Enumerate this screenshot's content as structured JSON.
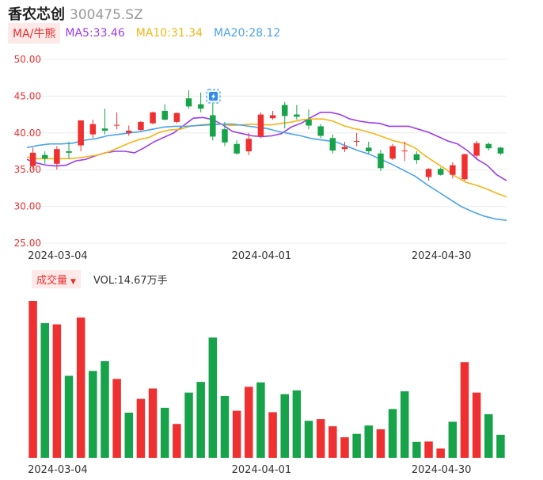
{
  "header": {
    "name": "香农芯创",
    "code": "300475.SZ"
  },
  "ma_bar": {
    "button_label": "MA/牛熊",
    "ma5": "MA5:33.46",
    "ma10": "MA10:31.34",
    "ma20": "MA20:28.12"
  },
  "volume_bar": {
    "button_label": "成交量",
    "label": "VOL:14.67万手"
  },
  "colors": {
    "up": "#ef3030",
    "down": "#16a34a",
    "ma5": "#9b3dea",
    "ma10": "#f4b516",
    "ma20": "#4aa3ec",
    "axis_text": "#e93030"
  },
  "icon": "lightning-bolt-icon",
  "chart_data": [
    {
      "type": "candlestick",
      "y_ticks": [
        "50.00",
        "45.00",
        "40.00",
        "35.00",
        "30.00",
        "25.00"
      ],
      "ylim": [
        25,
        50
      ],
      "x_tick_labels": [
        {
          "label": "2024-03-04",
          "index": 2
        },
        {
          "label": "2024-04-01",
          "index": 19
        },
        {
          "label": "2024-04-30",
          "index": 34
        }
      ],
      "candles": [
        {
          "o": 35.5,
          "c": 37.3,
          "h": 38.0,
          "l": 35.0
        },
        {
          "o": 37.0,
          "c": 36.5,
          "h": 37.5,
          "l": 35.8
        },
        {
          "o": 35.8,
          "c": 37.8,
          "h": 38.2,
          "l": 35.0
        },
        {
          "o": 37.5,
          "c": 37.3,
          "h": 38.8,
          "l": 36.5
        },
        {
          "o": 38.3,
          "c": 41.7,
          "h": 41.7,
          "l": 37.5
        },
        {
          "o": 39.8,
          "c": 41.2,
          "h": 41.8,
          "l": 39.3
        },
        {
          "o": 40.6,
          "c": 40.3,
          "h": 43.3,
          "l": 39.8
        },
        {
          "o": 41.1,
          "c": 41.1,
          "h": 42.8,
          "l": 40.5
        },
        {
          "o": 40.0,
          "c": 40.3,
          "h": 41.0,
          "l": 39.6
        },
        {
          "o": 40.4,
          "c": 41.5,
          "h": 41.6,
          "l": 40.3
        },
        {
          "o": 41.3,
          "c": 42.8,
          "h": 42.9,
          "l": 41.2
        },
        {
          "o": 43.0,
          "c": 41.8,
          "h": 43.9,
          "l": 41.7
        },
        {
          "o": 41.5,
          "c": 42.7,
          "h": 42.8,
          "l": 41.3
        },
        {
          "o": 44.7,
          "c": 43.6,
          "h": 45.8,
          "l": 43.3
        },
        {
          "o": 43.9,
          "c": 43.3,
          "h": 45.5,
          "l": 42.8
        },
        {
          "o": 42.4,
          "c": 39.5,
          "h": 44.0,
          "l": 39.0
        },
        {
          "o": 40.5,
          "c": 38.7,
          "h": 41.5,
          "l": 38.2
        },
        {
          "o": 38.5,
          "c": 37.2,
          "h": 39.0,
          "l": 37.0
        },
        {
          "o": 37.5,
          "c": 39.2,
          "h": 40.0,
          "l": 37.0
        },
        {
          "o": 39.5,
          "c": 42.5,
          "h": 42.8,
          "l": 39.3
        },
        {
          "o": 42.0,
          "c": 42.4,
          "h": 43.0,
          "l": 41.8
        },
        {
          "o": 43.8,
          "c": 42.3,
          "h": 44.2,
          "l": 40.6
        },
        {
          "o": 42.5,
          "c": 42.2,
          "h": 43.8,
          "l": 41.8
        },
        {
          "o": 41.8,
          "c": 41.0,
          "h": 43.2,
          "l": 40.5
        },
        {
          "o": 40.9,
          "c": 39.6,
          "h": 41.2,
          "l": 39.3
        },
        {
          "o": 39.3,
          "c": 37.6,
          "h": 39.8,
          "l": 37.2
        },
        {
          "o": 37.8,
          "c": 38.1,
          "h": 38.8,
          "l": 37.4
        },
        {
          "o": 38.8,
          "c": 38.9,
          "h": 40.0,
          "l": 38.2
        },
        {
          "o": 38.0,
          "c": 37.5,
          "h": 38.8,
          "l": 37.2
        },
        {
          "o": 37.2,
          "c": 35.2,
          "h": 37.7,
          "l": 34.8
        },
        {
          "o": 36.5,
          "c": 38.2,
          "h": 38.5,
          "l": 36.3
        },
        {
          "o": 37.5,
          "c": 37.6,
          "h": 38.8,
          "l": 36.2
        },
        {
          "o": 37.1,
          "c": 36.3,
          "h": 37.5,
          "l": 35.8
        },
        {
          "o": 34.0,
          "c": 35.1,
          "h": 35.2,
          "l": 33.5
        },
        {
          "o": 35.1,
          "c": 34.3,
          "h": 35.3,
          "l": 34.2
        },
        {
          "o": 34.3,
          "c": 35.6,
          "h": 36.0,
          "l": 33.8
        },
        {
          "o": 33.7,
          "c": 37.1,
          "h": 37.2,
          "l": 33.5
        },
        {
          "o": 36.9,
          "c": 38.6,
          "h": 38.9,
          "l": 36.5
        },
        {
          "o": 38.5,
          "c": 37.9,
          "h": 38.7,
          "l": 37.6
        },
        {
          "o": 38.0,
          "c": 37.2,
          "h": 38.1,
          "l": 37.0
        }
      ],
      "ma5": [
        36.4,
        35.9,
        35.6,
        35.5,
        35.6,
        36.2,
        36.4,
        36.9,
        37.3,
        37.5,
        37.5,
        37.3,
        38.0,
        38.8,
        39.4,
        40.0,
        41.0,
        42.0,
        42.1,
        41.8,
        41.1,
        40.2,
        39.9,
        39.6,
        39.5,
        39.6,
        39.9,
        40.8,
        41.3,
        42.1,
        42.8,
        42.8,
        42.5,
        41.9,
        41.6,
        41.4,
        41.3,
        40.9,
        40.9,
        40.9,
        40.5,
        40.1,
        39.5,
        38.9,
        38.5,
        37.6,
        36.4,
        35.6,
        34.3,
        33.5
      ],
      "ma10": [
        36.7,
        36.5,
        36.5,
        36.5,
        36.5,
        36.6,
        36.8,
        37.0,
        37.4,
        38.0,
        38.6,
        39.1,
        39.4,
        40.1,
        40.4,
        40.5,
        40.9,
        41.1,
        41.2,
        41.2,
        41.0,
        41.1,
        41.2,
        41.1,
        41.1,
        41.3,
        41.5,
        41.8,
        41.9,
        41.9,
        41.6,
        41.0,
        40.6,
        40.3,
        39.9,
        39.4,
        38.9,
        38.6,
        38.0,
        36.9,
        36.0,
        35.1,
        34.1,
        33.3,
        32.9,
        32.4,
        31.8,
        31.3
      ],
      "ma20": [
        38.0,
        38.3,
        38.5,
        38.5,
        38.6,
        39.0,
        39.2,
        39.6,
        39.8,
        40.0,
        40.2,
        40.5,
        40.8,
        40.9,
        40.9,
        41.0,
        41.1,
        41.2,
        41.2,
        41.0,
        40.8,
        40.6,
        40.2,
        39.9,
        39.6,
        39.2,
        39.0,
        38.8,
        38.2,
        37.6,
        37.1,
        36.4,
        35.7,
        34.9,
        34.1,
        33.0,
        32.0,
        31.0,
        30.0,
        29.3,
        28.7,
        28.3,
        28.1
      ]
    },
    {
      "type": "bar",
      "volume_up_down": [
        "up",
        "down",
        "up",
        "down",
        "up",
        "down",
        "down",
        "up",
        "down",
        "up",
        "up",
        "down",
        "up",
        "down",
        "down",
        "down",
        "down",
        "up",
        "up",
        "down",
        "up",
        "down",
        "down",
        "down",
        "up",
        "up",
        "up",
        "down",
        "down",
        "up",
        "down",
        "down",
        "down",
        "up",
        "up",
        "down",
        "up",
        "up",
        "down",
        "down"
      ],
      "volume": [
        100.0,
        85.9,
        85.1,
        52.3,
        89.5,
        55.4,
        61.6,
        50.3,
        28.8,
        37.6,
        44.2,
        31.9,
        21.6,
        41.6,
        48.4,
        76.7,
        39.4,
        30.0,
        45.3,
        48.1,
        29.1,
        40.6,
        43.0,
        23.6,
        24.7,
        20.1,
        13.1,
        15.3,
        20.6,
        18.2,
        31.1,
        42.4,
        10.2,
        10.4,
        5.9,
        23.0,
        61.0,
        41.6,
        27.8,
        14.7
      ]
    }
  ]
}
